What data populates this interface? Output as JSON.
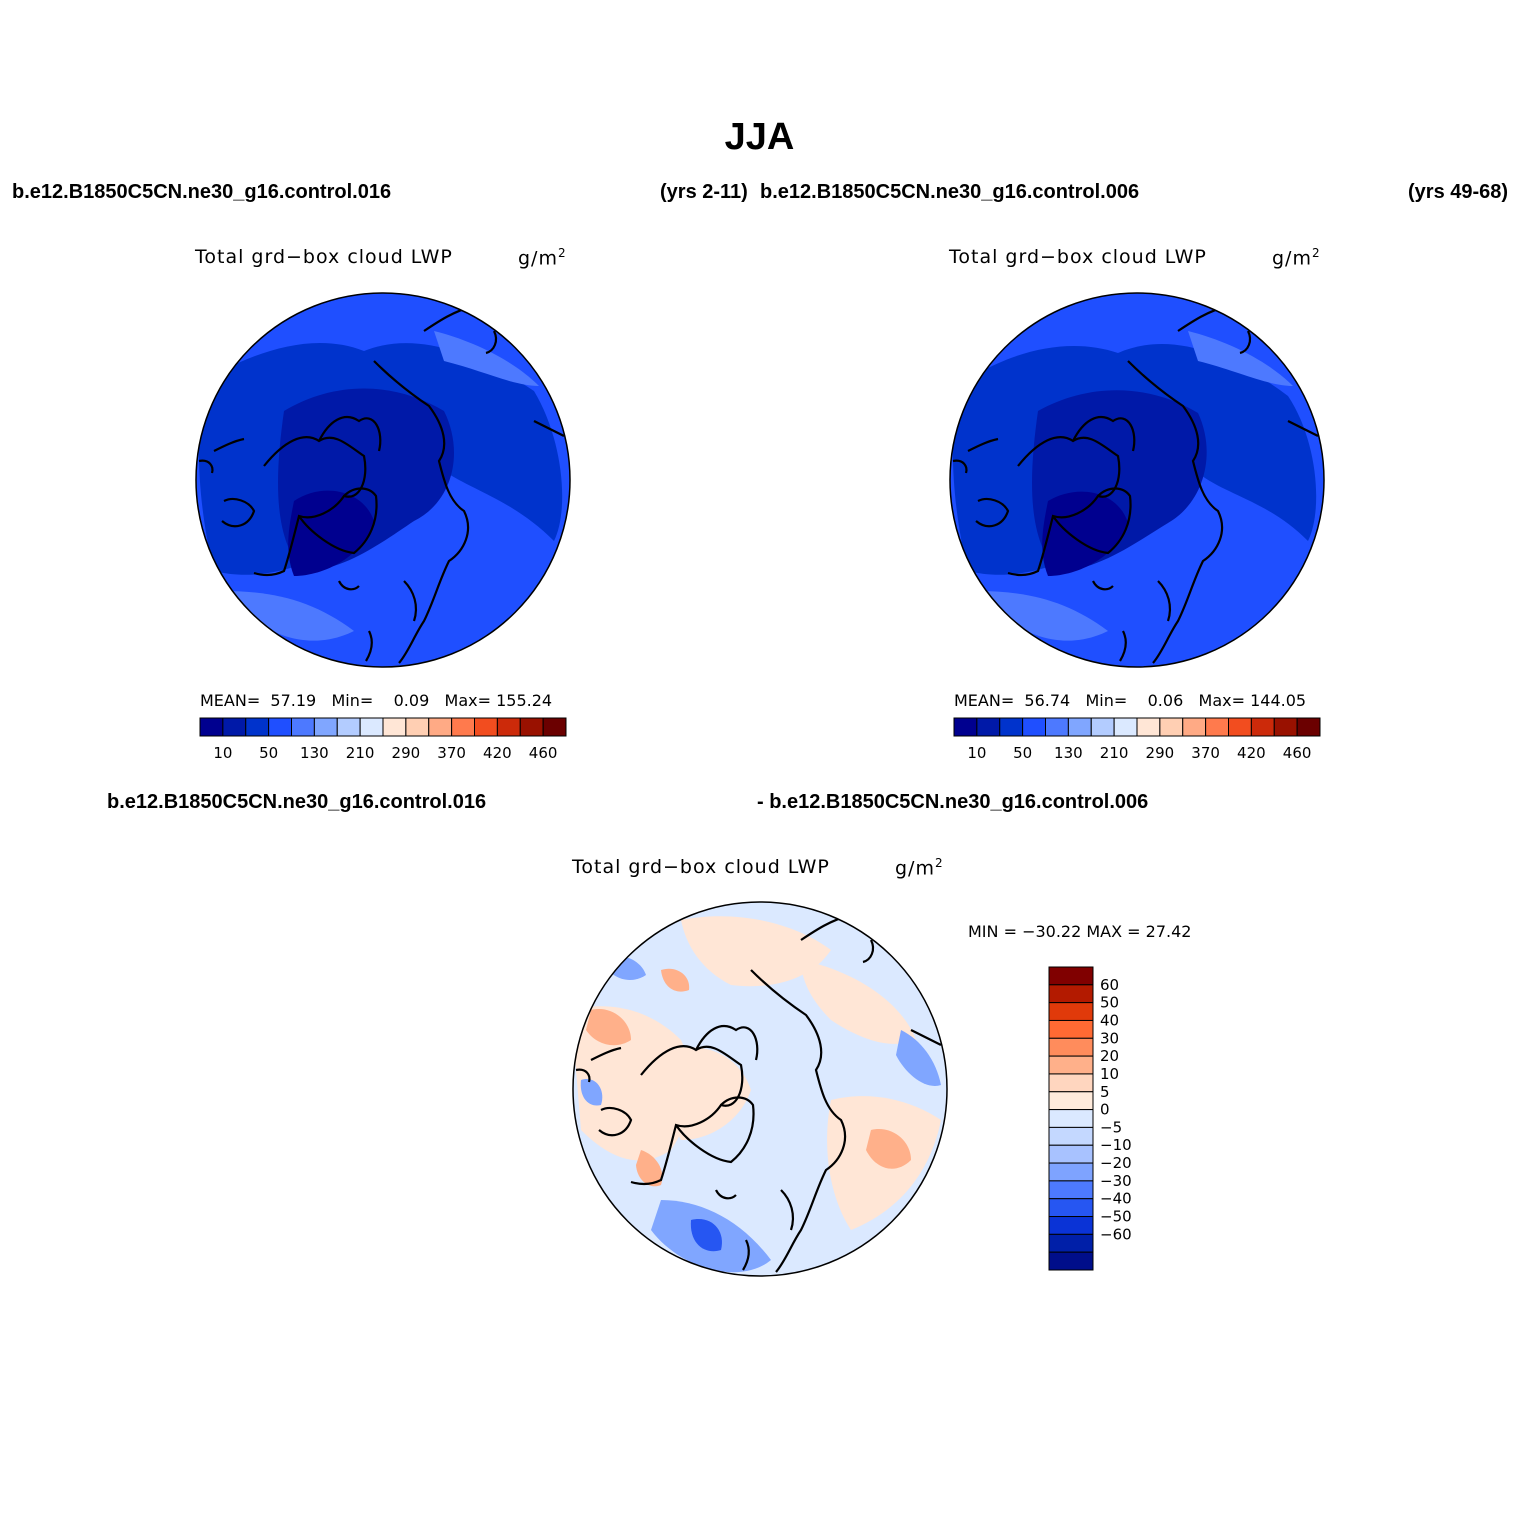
{
  "figure": {
    "title": "JJA",
    "case1": "b.e12.B1850C5CN.ne30_g16.control.016",
    "case1_years": "(yrs 2-11)",
    "case2": "b.e12.B1850C5CN.ne30_g16.control.006",
    "case2_years": "(yrs 49-68)",
    "diff_case1": "b.e12.B1850C5CN.ne30_g16.control.016",
    "diff_case2": "- b.e12.B1850C5CN.ne30_g16.control.006"
  },
  "panels": {
    "left": {
      "variable": "Total grd−box cloud LWP",
      "units_base": "g/m",
      "units_exp": "2",
      "mean_label": "MEAN=",
      "mean": "57.19",
      "min_label": "Min=",
      "min": "0.09",
      "max_label": "Max=",
      "max": "155.24"
    },
    "right": {
      "variable": "Total grd−box cloud LWP",
      "units_base": "g/m",
      "units_exp": "2",
      "mean_label": "MEAN=",
      "mean": "56.74",
      "min_label": "Min=",
      "min": "0.06",
      "max_label": "Max=",
      "max": "144.05"
    },
    "diff": {
      "variable": "Total grd−box cloud LWP",
      "units_base": "g/m",
      "units_exp": "2",
      "minmax": "MIN = −30.22 MAX =  27.42"
    }
  },
  "colorbars": {
    "abs": {
      "colors": [
        "#00008f",
        "#0019a8",
        "#0033cc",
        "#1f4fff",
        "#4d79ff",
        "#80a6ff",
        "#b3ccff",
        "#dbe9ff",
        "#ffe6d6",
        "#ffcfb3",
        "#ffaa85",
        "#ff7a4d",
        "#f24d1f",
        "#cc2a0a",
        "#991100",
        "#6b0000"
      ],
      "tick_labels": [
        "10",
        "50",
        "130",
        "210",
        "290",
        "370",
        "420",
        "460"
      ]
    },
    "diff": {
      "colors_top_to_bottom": [
        "#800000",
        "#b31a00",
        "#e03a0a",
        "#ff6a33",
        "#ff8c5c",
        "#ffb08a",
        "#ffd6bf",
        "#ffebdc",
        "#dbe9ff",
        "#c4d8ff",
        "#a8c2ff",
        "#7ea3ff",
        "#4d7aff",
        "#2656f2",
        "#0a33d6",
        "#001fa8",
        "#000e8a"
      ],
      "tick_labels": [
        "60",
        "50",
        "40",
        "30",
        "20",
        "10",
        "5",
        "0",
        "−5",
        "−10",
        "−20",
        "−30",
        "−40",
        "−50",
        "−60"
      ]
    }
  },
  "map_colors": {
    "abs_background": "#1f4fff",
    "abs_darkest": "#00008f",
    "abs_dark": "#0019a8",
    "abs_mid": "#0033cc",
    "abs_light": "#4d79ff",
    "diff_warm": "#ffe6d6",
    "diff_warm2": "#ffb08a",
    "diff_cool": "#dbe9ff",
    "diff_cool2": "#80a6ff",
    "diff_cool3": "#2656f2"
  }
}
